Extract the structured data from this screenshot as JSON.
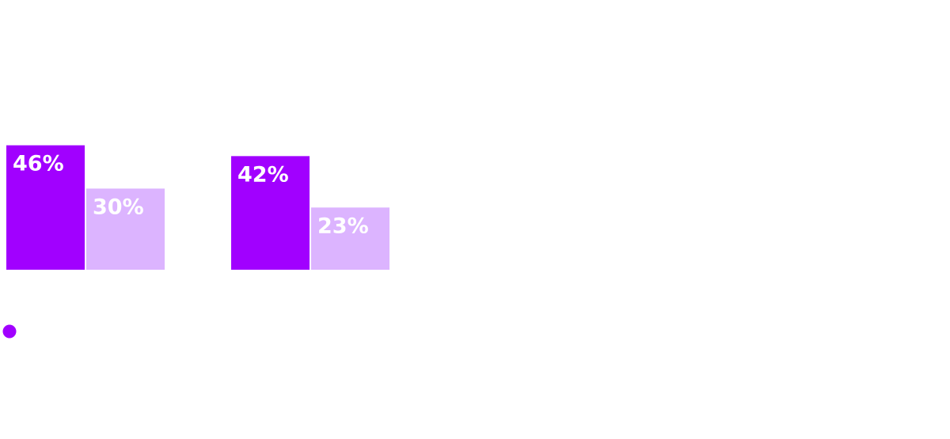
{
  "chart_data": {
    "type": "bar",
    "categories": [
      "",
      ""
    ],
    "series": [
      {
        "values": [
          46,
          42
        ],
        "labels": [
          "46%",
          "42%"
        ],
        "color": "#a100ff"
      },
      {
        "values": [
          30,
          23
        ],
        "labels": [
          "30%",
          "23%"
        ],
        "color": "#dcb4ff"
      }
    ],
    "ylim": [
      0,
      100
    ],
    "grid": false,
    "legend": {
      "placement": "bottom-left",
      "marker_color": "#a100ff"
    }
  }
}
